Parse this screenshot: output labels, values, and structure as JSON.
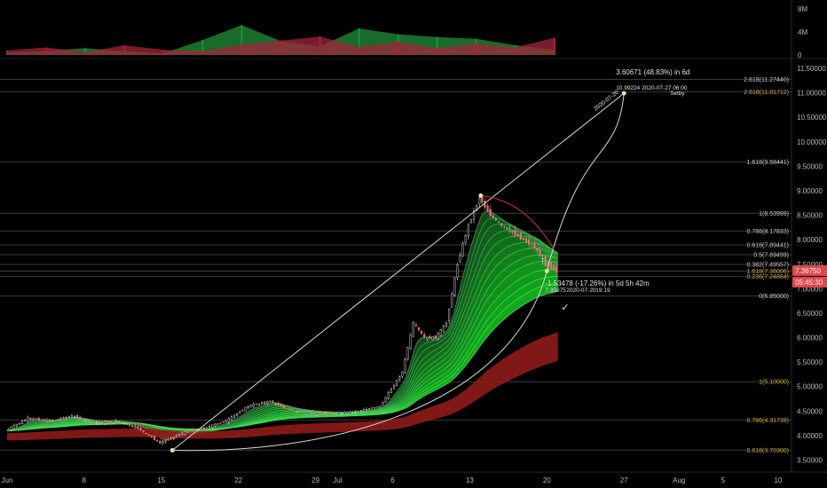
{
  "chart_data": [
    {
      "type": "bar",
      "panel": "volume",
      "y_tick_labels": [
        "8M",
        "4M",
        "0"
      ],
      "y_ticks": [
        8000000,
        4000000,
        0
      ],
      "ylim": [
        0,
        10000000
      ],
      "series": [
        {
          "name": "",
          "color": "#1f8f3a",
          "values": [
            400000,
            700000,
            1200000,
            600000,
            300000,
            2600000,
            5200000,
            2400000,
            1500000,
            4600000,
            3600000,
            3100000,
            2800000,
            1700000,
            900000
          ]
        },
        {
          "name": "",
          "color": "#a3243a",
          "values": [
            800000,
            1300000,
            500000,
            1700000,
            900000,
            700000,
            1800000,
            2500000,
            3200000,
            1400000,
            2300000,
            1200000,
            2000000,
            1300000,
            3000000
          ]
        }
      ]
    },
    {
      "type": "line",
      "panel": "price",
      "xlim": [
        "2020-06-01",
        "2020-08-10"
      ],
      "ylim": [
        3.5,
        11.7
      ],
      "y_tick_labels": [
        "11.50000",
        "11.00000",
        "10.50000",
        "10.00000",
        "9.50000",
        "9.00000",
        "8.50000",
        "8.00000",
        "7.50000",
        "7.00000",
        "6.50000",
        "6.00000",
        "5.50000",
        "5.00000",
        "4.50000",
        "4.00000",
        "3.50000"
      ],
      "x_ticks": [
        {
          "label": "Jun",
          "date": "2020-06-01"
        },
        {
          "label": "8",
          "date": "2020-06-08"
        },
        {
          "label": "15",
          "date": "2020-06-15"
        },
        {
          "label": "22",
          "date": "2020-06-22"
        },
        {
          "label": "29",
          "date": "2020-06-29"
        },
        {
          "label": "Jul",
          "date": "2020-07-01"
        },
        {
          "label": "6",
          "date": "2020-07-06"
        },
        {
          "label": "13",
          "date": "2020-07-13"
        },
        {
          "label": "20",
          "date": "2020-07-20"
        },
        {
          "label": "27",
          "date": "2020-07-27"
        },
        {
          "label": "Aug",
          "date": "2020-08-01"
        },
        {
          "label": "5",
          "date": "2020-08-05"
        },
        {
          "label": "10",
          "date": "2020-08-10"
        }
      ],
      "price_series": {
        "dates": [
          "2020-06-01",
          "2020-06-03",
          "2020-06-05",
          "2020-06-07",
          "2020-06-09",
          "2020-06-11",
          "2020-06-13",
          "2020-06-15",
          "2020-06-17",
          "2020-06-19",
          "2020-06-21",
          "2020-06-23",
          "2020-06-25",
          "2020-06-27",
          "2020-06-29",
          "2020-07-01",
          "2020-07-03",
          "2020-07-05",
          "2020-07-07",
          "2020-07-08",
          "2020-07-09",
          "2020-07-10",
          "2020-07-11",
          "2020-07-12",
          "2020-07-13",
          "2020-07-14",
          "2020-07-15",
          "2020-07-16",
          "2020-07-17",
          "2020-07-18",
          "2020-07-19",
          "2020-07-20",
          "2020-07-21"
        ],
        "close": [
          4.1,
          4.35,
          4.3,
          4.4,
          4.25,
          4.3,
          4.15,
          3.85,
          4.05,
          4.15,
          4.3,
          4.6,
          4.7,
          4.5,
          4.45,
          4.45,
          4.5,
          4.6,
          5.3,
          6.3,
          6.0,
          6.0,
          6.3,
          7.5,
          8.3,
          8.85,
          8.5,
          8.3,
          8.15,
          8.0,
          7.85,
          7.5,
          7.37
        ]
      },
      "fibonacci_levels": [
        {
          "label": "2.618(11.27440)",
          "value": 11.2744
        },
        {
          "label": "2.618(11.01712)",
          "value": 11.01712,
          "color": "#d0a84a"
        },
        {
          "label": "1.618(9.58441)",
          "value": 9.58441
        },
        {
          "label": "1(8.53999)",
          "value": 8.53999
        },
        {
          "label": "0.786(8.17833)",
          "value": 8.17833
        },
        {
          "label": "0.618(7.89441)",
          "value": 7.89441
        },
        {
          "label": "0.5(7.69499)",
          "value": 7.69499
        },
        {
          "label": "0.382(7.49557)",
          "value": 7.49557
        },
        {
          "label": "1.618(7.36006)",
          "value": 7.36006,
          "color": "#d0a84a"
        },
        {
          "label": "0.236(7.24884)",
          "value": 7.24884,
          "color": "#d0a84a"
        },
        {
          "label": "0(6.85000)",
          "value": 6.85
        },
        {
          "label": "1(5.10000)",
          "value": 5.1,
          "color": "#d0a84a"
        },
        {
          "label": "0.786(4.31739)",
          "value": 4.31739,
          "color": "#d0a84a"
        },
        {
          "label": "0.618(3.70300)",
          "value": 3.703,
          "color": "#d0a84a"
        }
      ],
      "annotations": {
        "proj_top_line1": "3.60671 (48.83%) in 6d",
        "proj_top_value": "10.99224",
        "proj_top_date": "2020-07-27",
        "proj_top_time": "06:00",
        "proj_top_author": "Selby",
        "curve_label": "2020-07-20",
        "pullback_line1": "-1.53478 (-17.26%) in 5d 5h 42m",
        "pullback_value": "7.35975",
        "pullback_date": "2020-07-20",
        "pullback_time": "19:19",
        "checkmark": "✓"
      },
      "last_price_badge": {
        "label": "7.36750",
        "color": "#e0474c"
      },
      "countdown_badge": {
        "label": "05:45:30",
        "color": "#e0474c"
      }
    }
  ]
}
